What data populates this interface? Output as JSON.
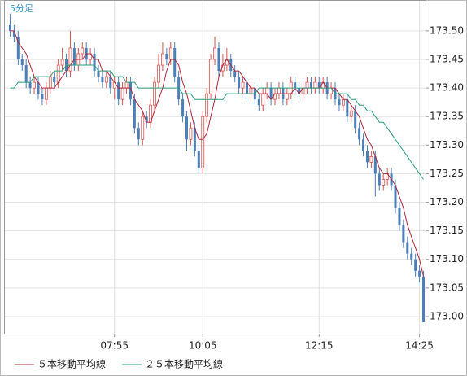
{
  "chart_data": {
    "type": "candlestick",
    "title": "5分足",
    "categories": [
      null,
      null,
      null,
      null,
      null,
      null,
      null,
      null,
      null,
      null,
      null,
      null,
      null,
      null,
      null,
      null,
      null,
      null,
      null,
      null,
      null,
      null,
      null,
      null,
      null,
      null,
      "07:55",
      null,
      null,
      null,
      null,
      null,
      null,
      null,
      null,
      null,
      null,
      null,
      null,
      null,
      null,
      null,
      null,
      null,
      null,
      null,
      null,
      null,
      "10:05",
      null,
      null,
      null,
      null,
      null,
      null,
      null,
      null,
      null,
      null,
      null,
      null,
      null,
      null,
      null,
      null,
      null,
      null,
      null,
      null,
      null,
      null,
      null,
      null,
      null,
      null,
      null,
      null,
      "12:15",
      null,
      null,
      null,
      null,
      null,
      null,
      null,
      null,
      null,
      null,
      null,
      null,
      null,
      null,
      null,
      null,
      null,
      null,
      null,
      null,
      null,
      null,
      null,
      null,
      "14:25",
      null
    ],
    "open": [
      173.51,
      173.5,
      173.49,
      173.45,
      173.44,
      173.41,
      173.4,
      173.41,
      173.39,
      173.38,
      173.4,
      173.42,
      173.41,
      173.44,
      173.45,
      173.43,
      173.47,
      173.44,
      173.46,
      173.47,
      173.45,
      173.46,
      173.43,
      173.42,
      173.41,
      173.42,
      173.4,
      173.41,
      173.38,
      173.4,
      173.41,
      173.38,
      173.33,
      173.31,
      173.35,
      173.34,
      173.37,
      173.41,
      173.44,
      173.46,
      173.45,
      173.47,
      173.42,
      173.38,
      173.35,
      173.31,
      173.33,
      173.29,
      173.26,
      173.35,
      173.39,
      173.45,
      173.47,
      173.43,
      173.44,
      173.45,
      173.43,
      173.42,
      173.4,
      173.41,
      173.39,
      173.4,
      173.38,
      173.37,
      173.39,
      173.4,
      173.38,
      173.39,
      173.4,
      173.38,
      173.39,
      173.41,
      173.4,
      173.39,
      173.4,
      173.41,
      173.4,
      173.41,
      173.4,
      173.41,
      173.39,
      173.4,
      173.38,
      173.37,
      173.38,
      173.35,
      173.36,
      173.33,
      173.31,
      173.29,
      173.27,
      173.28,
      173.25,
      173.23,
      173.24,
      173.25,
      173.23,
      173.19,
      173.16,
      173.13,
      173.11,
      173.1,
      173.08,
      173.07
    ],
    "high": [
      173.53,
      173.51,
      173.5,
      173.46,
      173.45,
      173.42,
      173.42,
      173.42,
      173.4,
      173.41,
      173.43,
      173.43,
      173.45,
      173.47,
      173.46,
      173.5,
      173.48,
      173.47,
      173.48,
      173.48,
      173.47,
      173.47,
      173.44,
      173.43,
      173.43,
      173.43,
      173.42,
      173.42,
      173.41,
      173.42,
      173.42,
      173.39,
      173.34,
      173.36,
      173.36,
      173.38,
      173.42,
      173.46,
      173.48,
      173.47,
      173.48,
      173.48,
      173.43,
      173.39,
      173.36,
      173.34,
      173.34,
      173.3,
      173.36,
      173.4,
      173.46,
      173.49,
      173.48,
      173.46,
      173.47,
      173.46,
      173.44,
      173.43,
      173.42,
      173.42,
      173.41,
      173.41,
      173.39,
      173.4,
      173.41,
      173.41,
      173.4,
      173.41,
      173.41,
      173.4,
      173.42,
      173.42,
      173.41,
      173.41,
      173.42,
      173.42,
      173.42,
      173.42,
      173.42,
      173.42,
      173.41,
      173.41,
      173.39,
      173.39,
      173.39,
      173.37,
      173.37,
      173.34,
      173.32,
      173.3,
      173.29,
      173.29,
      173.26,
      173.25,
      173.26,
      173.26,
      173.24,
      173.2,
      173.17,
      173.14,
      173.12,
      173.11,
      173.09,
      173.08
    ],
    "low": [
      173.49,
      173.48,
      173.44,
      173.43,
      173.4,
      173.39,
      173.39,
      173.38,
      173.37,
      173.37,
      173.39,
      173.4,
      173.4,
      173.43,
      173.42,
      173.42,
      173.43,
      173.43,
      173.45,
      173.44,
      173.44,
      173.42,
      173.41,
      173.4,
      173.4,
      173.39,
      173.38,
      173.37,
      173.37,
      173.39,
      173.37,
      173.32,
      173.3,
      173.3,
      173.33,
      173.33,
      173.36,
      173.4,
      173.43,
      173.44,
      173.44,
      173.41,
      173.37,
      173.34,
      173.29,
      173.3,
      173.28,
      173.25,
      173.25,
      173.34,
      173.38,
      173.44,
      173.42,
      173.42,
      173.43,
      173.42,
      173.41,
      173.39,
      173.39,
      173.38,
      173.38,
      173.37,
      173.36,
      173.36,
      173.38,
      173.37,
      173.37,
      173.38,
      173.37,
      173.37,
      173.38,
      173.39,
      173.38,
      173.38,
      173.39,
      173.39,
      173.39,
      173.39,
      173.39,
      173.38,
      173.38,
      173.37,
      173.36,
      173.36,
      173.34,
      173.34,
      173.32,
      173.3,
      173.28,
      173.26,
      173.26,
      173.21,
      173.22,
      173.22,
      173.23,
      173.22,
      173.18,
      173.15,
      173.12,
      173.1,
      173.09,
      173.07,
      173.06,
      172.99
    ],
    "close": [
      173.5,
      173.49,
      173.45,
      173.44,
      173.41,
      173.4,
      173.41,
      173.39,
      173.38,
      173.4,
      173.42,
      173.41,
      173.44,
      173.45,
      173.43,
      173.47,
      173.44,
      173.46,
      173.47,
      173.45,
      173.46,
      173.43,
      173.42,
      173.41,
      173.42,
      173.4,
      173.41,
      173.38,
      173.4,
      173.41,
      173.38,
      173.33,
      173.31,
      173.35,
      173.34,
      173.37,
      173.41,
      173.44,
      173.46,
      173.45,
      173.47,
      173.42,
      173.38,
      173.35,
      173.31,
      173.33,
      173.29,
      173.26,
      173.35,
      173.39,
      173.45,
      173.47,
      173.43,
      173.44,
      173.45,
      173.43,
      173.42,
      173.4,
      173.41,
      173.39,
      173.4,
      173.38,
      173.37,
      173.39,
      173.4,
      173.38,
      173.39,
      173.4,
      173.38,
      173.39,
      173.41,
      173.4,
      173.39,
      173.4,
      173.41,
      173.4,
      173.41,
      173.4,
      173.41,
      173.39,
      173.4,
      173.38,
      173.37,
      173.38,
      173.35,
      173.36,
      173.33,
      173.31,
      173.29,
      173.27,
      173.28,
      173.25,
      173.23,
      173.24,
      173.25,
      173.23,
      173.19,
      173.16,
      173.13,
      173.11,
      173.1,
      173.08,
      173.07,
      172.99
    ],
    "up_color": "#d9534f",
    "down_color": "#4a7fb8",
    "series": [
      {
        "name": "５本移動平均線",
        "color": "#b0283c",
        "values": [
          173.5,
          173.5,
          173.48,
          173.47,
          173.46,
          173.44,
          173.42,
          173.41,
          173.4,
          173.4,
          173.4,
          173.4,
          173.41,
          173.42,
          173.43,
          173.44,
          173.45,
          173.45,
          173.45,
          173.46,
          173.46,
          173.45,
          173.45,
          173.43,
          173.43,
          173.42,
          173.41,
          173.4,
          173.4,
          173.4,
          173.4,
          173.38,
          173.37,
          173.36,
          173.34,
          173.34,
          173.36,
          173.38,
          173.4,
          173.43,
          173.45,
          173.45,
          173.44,
          173.41,
          173.39,
          173.36,
          173.33,
          173.31,
          173.31,
          173.32,
          173.35,
          173.38,
          173.42,
          173.44,
          173.45,
          173.44,
          173.43,
          173.43,
          173.42,
          173.41,
          173.4,
          173.4,
          173.39,
          173.39,
          173.39,
          173.38,
          173.39,
          173.39,
          173.39,
          173.39,
          173.39,
          173.4,
          173.39,
          173.4,
          173.4,
          173.4,
          173.4,
          173.4,
          173.41,
          173.4,
          173.4,
          173.4,
          173.39,
          173.38,
          173.38,
          173.37,
          173.36,
          173.35,
          173.33,
          173.31,
          173.3,
          173.28,
          173.26,
          173.25,
          173.25,
          173.24,
          173.23,
          173.21,
          173.19,
          173.16,
          173.14,
          173.12,
          173.1,
          173.07
        ]
      },
      {
        "name": "２５本移動平均線",
        "color": "#2a9d7a",
        "values": [
          173.4,
          173.4,
          173.41,
          173.41,
          173.41,
          173.41,
          173.42,
          173.42,
          173.42,
          173.42,
          173.42,
          173.43,
          173.43,
          173.43,
          173.44,
          173.44,
          173.44,
          173.44,
          173.44,
          173.44,
          173.44,
          173.44,
          173.43,
          173.43,
          173.43,
          173.43,
          173.42,
          173.42,
          173.42,
          173.41,
          173.41,
          173.41,
          173.4,
          173.4,
          173.4,
          173.4,
          173.4,
          173.4,
          173.4,
          173.4,
          173.4,
          173.4,
          173.4,
          173.39,
          173.39,
          173.39,
          173.38,
          173.38,
          173.38,
          173.38,
          173.38,
          173.38,
          173.38,
          173.38,
          173.39,
          173.39,
          173.39,
          173.39,
          173.39,
          173.39,
          173.39,
          173.39,
          173.4,
          173.4,
          173.4,
          173.4,
          173.4,
          173.4,
          173.4,
          173.4,
          173.4,
          173.4,
          173.4,
          173.4,
          173.4,
          173.4,
          173.4,
          173.4,
          173.4,
          173.4,
          173.4,
          173.39,
          173.39,
          173.39,
          173.39,
          173.38,
          173.38,
          173.37,
          173.37,
          173.36,
          173.36,
          173.35,
          173.34,
          173.34,
          173.33,
          173.32,
          173.31,
          173.3,
          173.29,
          173.28,
          173.27,
          173.26,
          173.25,
          173.24
        ]
      }
    ],
    "ylim": [
      172.97,
      173.554
    ],
    "yticks": [
      {
        "value": 173.0,
        "label": "173.00"
      },
      {
        "value": 173.05,
        "label": "173.05"
      },
      {
        "value": 173.1,
        "label": "173.10"
      },
      {
        "value": 173.15,
        "label": "173.15"
      },
      {
        "value": 173.2,
        "label": "173.20"
      },
      {
        "value": 173.25,
        "label": "173.25"
      },
      {
        "value": 173.3,
        "label": "173.30"
      },
      {
        "value": 173.35,
        "label": "173.35"
      },
      {
        "value": 173.4,
        "label": "173.40"
      },
      {
        "value": 173.45,
        "label": "173.45"
      },
      {
        "value": 173.5,
        "label": "173.50"
      }
    ],
    "grid": true
  }
}
